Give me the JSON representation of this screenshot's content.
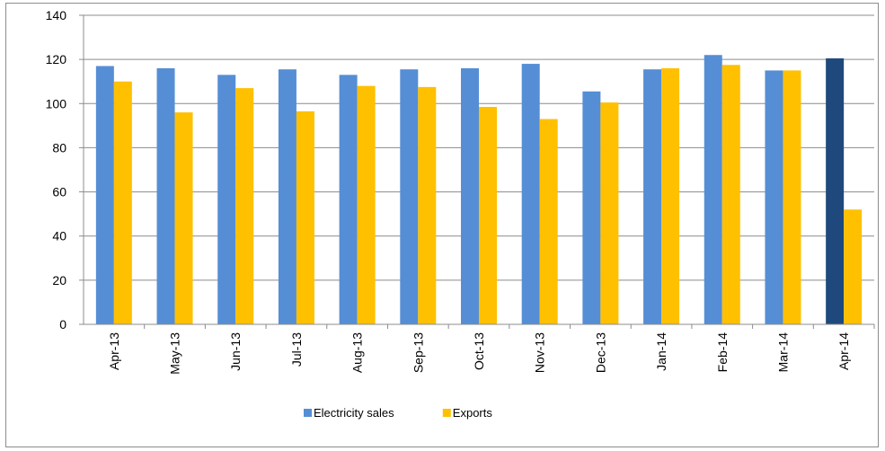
{
  "chart_data": {
    "type": "bar",
    "categories": [
      "Apr-13",
      "May-13",
      "Jun-13",
      "Jul-13",
      "Aug-13",
      "Sep-13",
      "Oct-13",
      "Nov-13",
      "Dec-13",
      "Jan-14",
      "Feb-14",
      "Mar-14",
      "Apr-14"
    ],
    "series": [
      {
        "name": "Electricity sales",
        "color": "#558ED5",
        "values": [
          117,
          116,
          113,
          115.5,
          113,
          115.5,
          116,
          118,
          105.5,
          115.5,
          122,
          115,
          120.5
        ],
        "highlight": {
          "index": 12,
          "color": "#1F497D"
        }
      },
      {
        "name": "Exports",
        "color": "#FFC000",
        "values": [
          110,
          96,
          107,
          96.5,
          108,
          107.5,
          98.5,
          93,
          100.5,
          116,
          117.5,
          115,
          52
        ]
      }
    ],
    "title": "",
    "xlabel": "",
    "ylabel": "",
    "ylim": [
      0,
      140
    ],
    "yticks": [
      0,
      20,
      40,
      60,
      80,
      100,
      120,
      140
    ],
    "grid": true,
    "legend": "bottom"
  }
}
